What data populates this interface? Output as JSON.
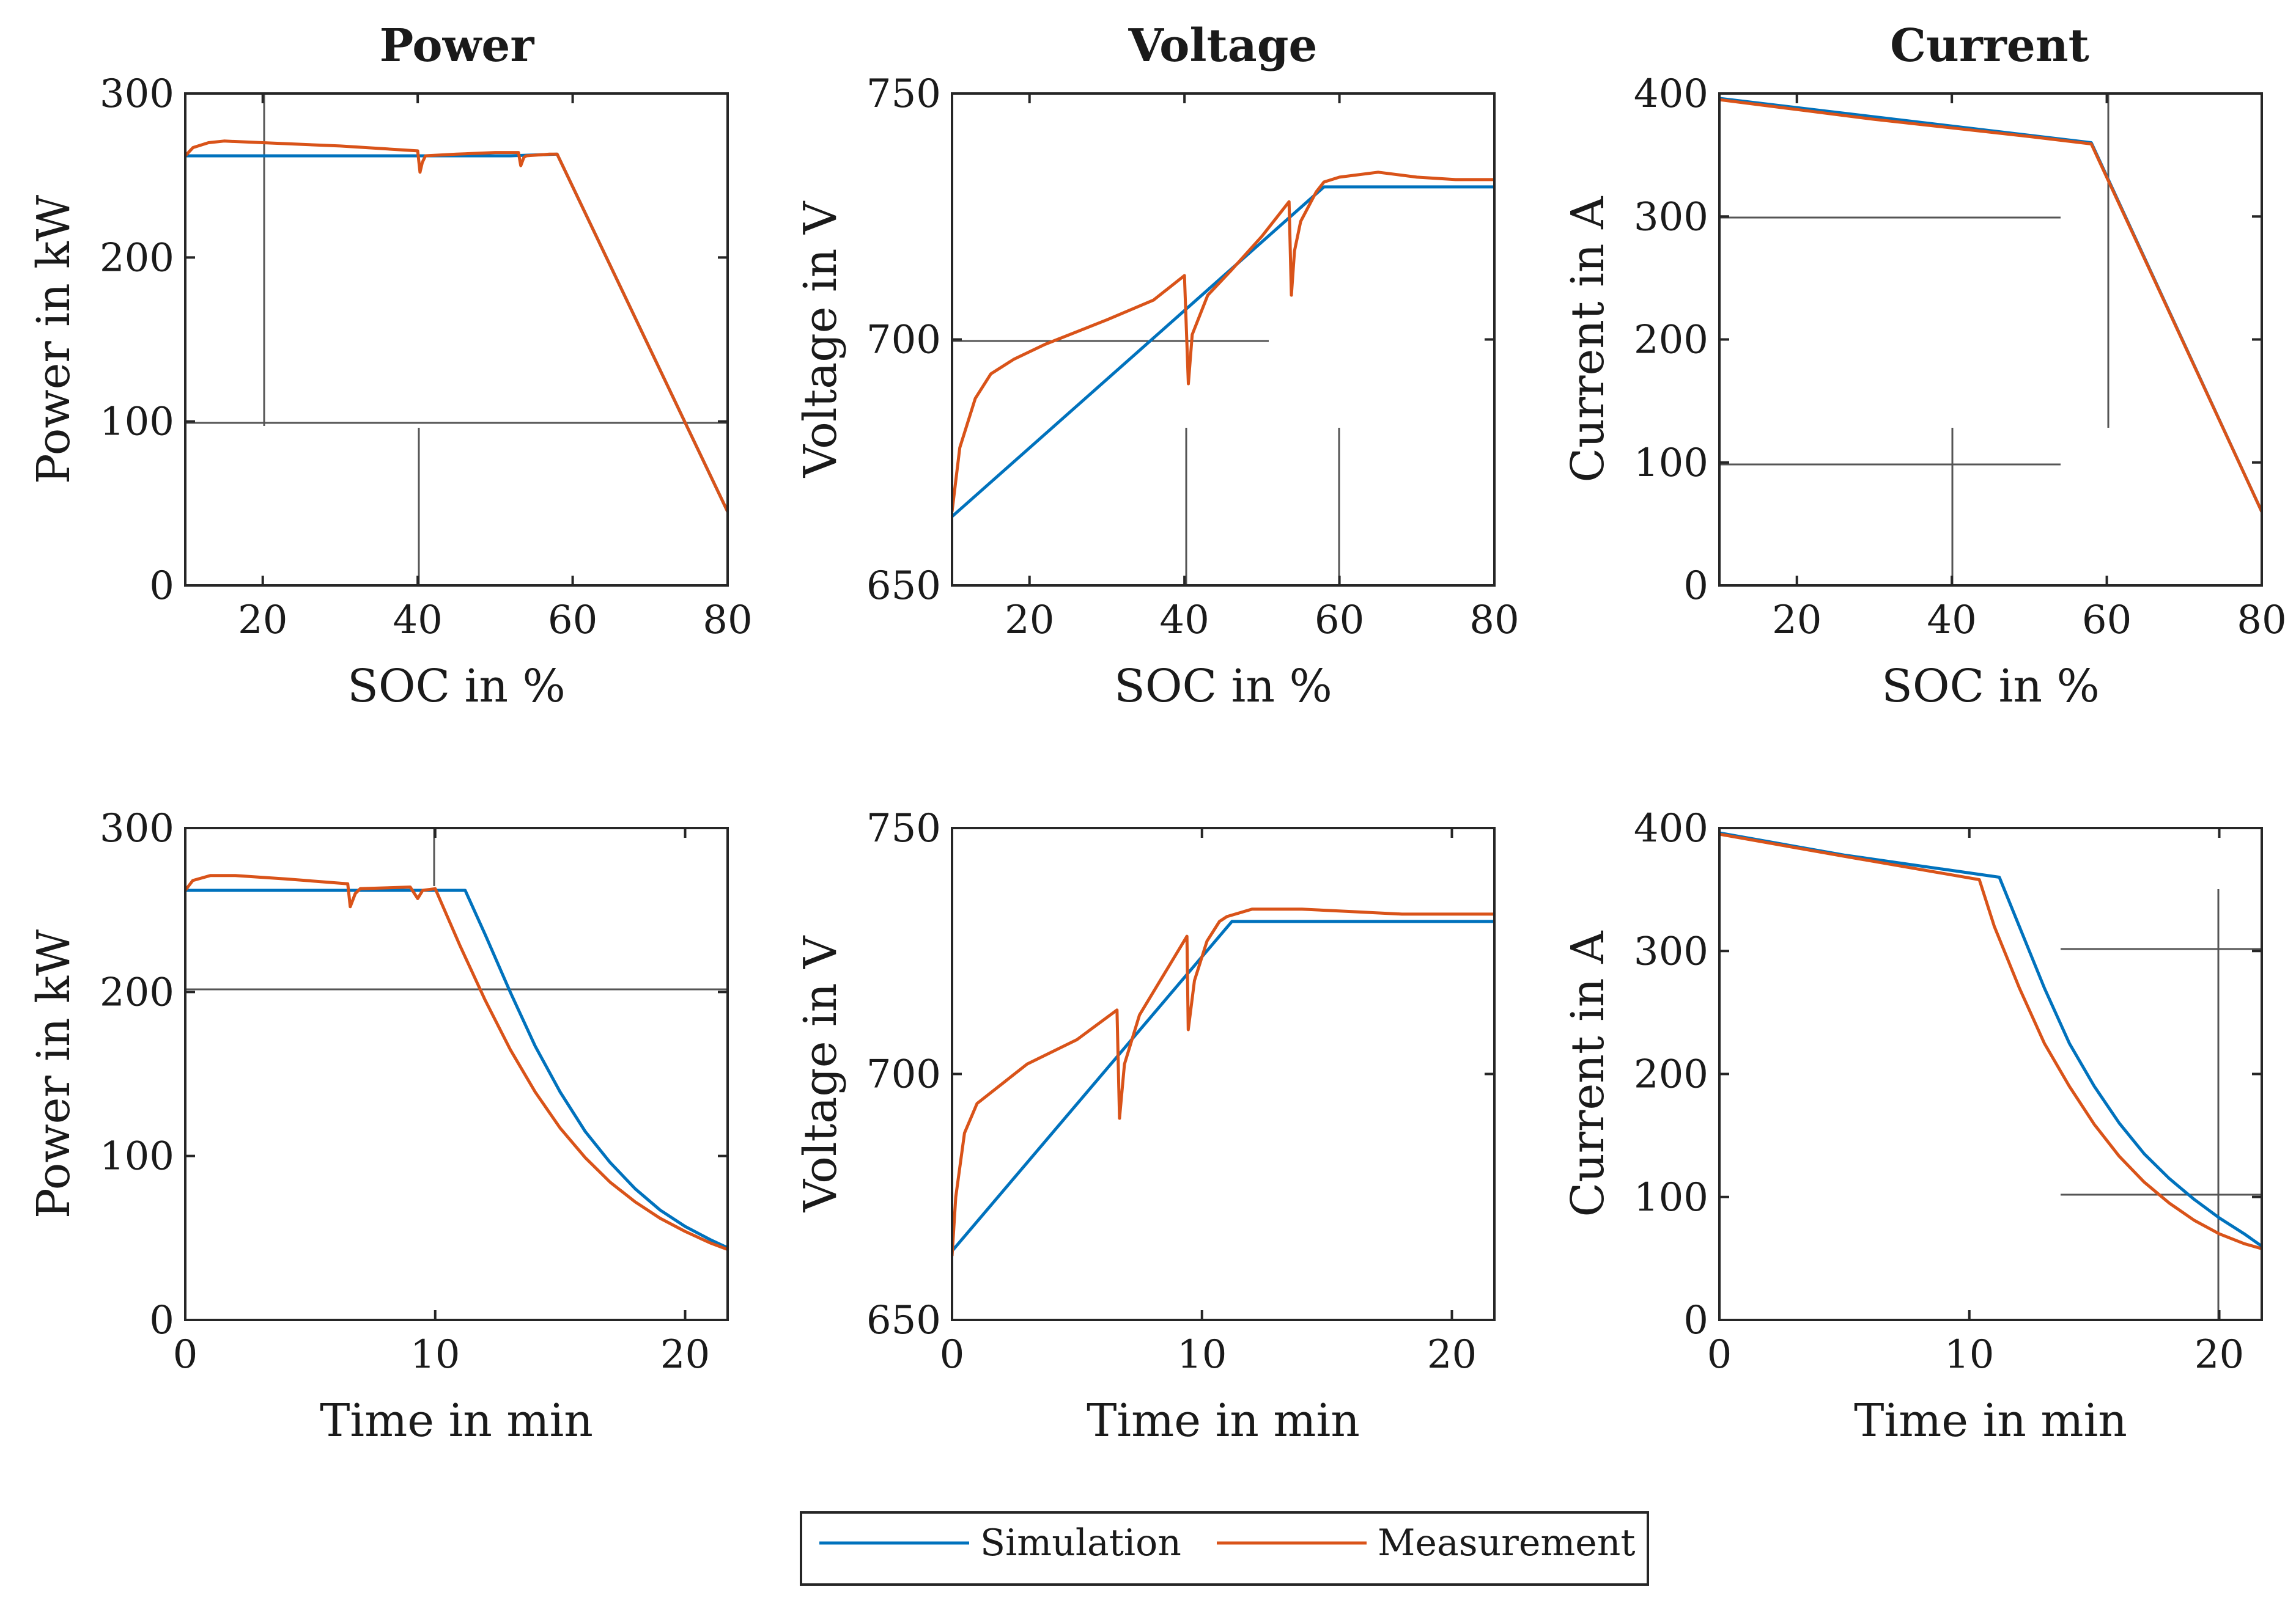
{
  "figure": {
    "column_titles": [
      "Power",
      "Voltage",
      "Current"
    ],
    "legend": {
      "location": "bottom-center",
      "entries": [
        {
          "label": "Simulation",
          "color": "#0072BD"
        },
        {
          "label": "Measurement",
          "color": "#D95319"
        }
      ]
    }
  },
  "chart_data": [
    {
      "type": "line",
      "row": 1,
      "col": 1,
      "title": "Power",
      "xlabel": "SOC in %",
      "ylabel": "Power in kW",
      "xlim": [
        10,
        80
      ],
      "ylim": [
        0,
        300
      ],
      "xticks": [
        20,
        40,
        60,
        80
      ],
      "yticks": [
        0,
        100,
        200,
        300
      ],
      "series": [
        {
          "name": "Simulation",
          "color": "#0072BD",
          "x": [
            10,
            40,
            52,
            58,
            80
          ],
          "y": [
            262,
            262,
            262,
            263,
            45
          ]
        },
        {
          "name": "Measurement",
          "color": "#D95319",
          "x": [
            10,
            11,
            13,
            15,
            20,
            30,
            40,
            40.3,
            40.6,
            41,
            45,
            50,
            53,
            53.3,
            53.7,
            54,
            57,
            58,
            80
          ],
          "y": [
            262,
            267,
            270,
            271,
            270,
            268,
            265,
            252,
            258,
            262,
            263,
            264,
            264,
            256,
            261,
            262,
            263,
            263,
            45
          ]
        }
      ]
    },
    {
      "type": "line",
      "row": 1,
      "col": 2,
      "title": "Voltage",
      "xlabel": "SOC in %",
      "ylabel": "Voltage in V",
      "xlim": [
        10,
        80
      ],
      "ylim": [
        650,
        750
      ],
      "xticks": [
        20,
        40,
        60,
        80
      ],
      "yticks": [
        650,
        700,
        750
      ],
      "series": [
        {
          "name": "Simulation",
          "color": "#0072BD",
          "x": [
            10,
            58,
            80
          ],
          "y": [
            664,
            731,
            731
          ]
        },
        {
          "name": "Measurement",
          "color": "#D95319",
          "x": [
            10,
            11,
            13,
            15,
            18,
            22,
            30,
            36,
            40,
            40.5,
            41,
            43,
            46,
            50,
            53.5,
            53.8,
            54.2,
            55,
            57,
            58,
            60,
            65,
            70,
            75,
            80
          ],
          "y": [
            665,
            678,
            688,
            693,
            696,
            699,
            704,
            708,
            713,
            691,
            701,
            709,
            714,
            721,
            728,
            709,
            718,
            724,
            730,
            732,
            733,
            734,
            733,
            732.5,
            732.5
          ]
        }
      ]
    },
    {
      "type": "line",
      "row": 1,
      "col": 3,
      "title": "Current",
      "xlabel": "SOC in %",
      "ylabel": "Current in A",
      "xlim": [
        10,
        80
      ],
      "ylim": [
        0,
        400
      ],
      "xticks": [
        20,
        40,
        60,
        80
      ],
      "yticks": [
        0,
        100,
        200,
        300,
        400
      ],
      "series": [
        {
          "name": "Simulation",
          "color": "#0072BD",
          "x": [
            10,
            58,
            80
          ],
          "y": [
            396,
            360,
            60
          ]
        },
        {
          "name": "Measurement",
          "color": "#D95319",
          "x": [
            10,
            20,
            30,
            40,
            50,
            58,
            80
          ],
          "y": [
            395,
            387,
            379,
            372,
            365,
            359,
            60
          ]
        }
      ]
    },
    {
      "type": "line",
      "row": 2,
      "col": 1,
      "title": "",
      "xlabel": "Time in min",
      "ylabel": "Power in kW",
      "xlim": [
        0,
        21.7
      ],
      "ylim": [
        0,
        300
      ],
      "xticks": [
        0,
        10,
        20
      ],
      "yticks": [
        0,
        100,
        200,
        300
      ],
      "series": [
        {
          "name": "Simulation",
          "color": "#0072BD",
          "x": [
            0,
            11.2,
            12,
            13,
            14,
            15,
            16,
            17,
            18,
            19,
            20,
            21,
            21.7
          ],
          "y": [
            262,
            262,
            235,
            200,
            167,
            139,
            115,
            96,
            80,
            67,
            57,
            49,
            44
          ]
        },
        {
          "name": "Measurement",
          "color": "#D95319",
          "x": [
            0,
            0.3,
            1,
            2,
            4,
            6.5,
            6.6,
            6.8,
            7,
            9,
            9.3,
            9.5,
            10,
            11,
            12,
            13,
            14,
            15,
            16,
            17,
            18,
            19,
            20,
            21,
            21.7
          ],
          "y": [
            262,
            268,
            271,
            271,
            269,
            266,
            252,
            260,
            263,
            264,
            257,
            262,
            263,
            228,
            195,
            165,
            139,
            117,
            99,
            84,
            72,
            62,
            54,
            47,
            43
          ]
        }
      ]
    },
    {
      "type": "line",
      "row": 2,
      "col": 2,
      "title": "",
      "xlabel": "Time in min",
      "ylabel": "Voltage in V",
      "xlim": [
        0,
        21.7
      ],
      "ylim": [
        650,
        750
      ],
      "xticks": [
        0,
        10,
        20
      ],
      "yticks": [
        650,
        700,
        750
      ],
      "series": [
        {
          "name": "Simulation",
          "color": "#0072BD",
          "x": [
            0,
            11.2,
            21.7
          ],
          "y": [
            664,
            731,
            731
          ]
        },
        {
          "name": "Measurement",
          "color": "#D95319",
          "x": [
            0,
            0.15,
            0.5,
            1,
            2,
            3,
            5,
            6.6,
            6.7,
            6.9,
            7.5,
            9.4,
            9.45,
            9.7,
            10.2,
            10.7,
            11,
            12,
            14,
            16,
            18,
            21.7
          ],
          "y": [
            663,
            675,
            688,
            694,
            698,
            702,
            707,
            713,
            691,
            702,
            712,
            728,
            709,
            719,
            727,
            731,
            732,
            733.5,
            733.5,
            733,
            732.5,
            732.5
          ]
        }
      ]
    },
    {
      "type": "line",
      "row": 2,
      "col": 3,
      "title": "",
      "xlabel": "Time in min",
      "ylabel": "Current in A",
      "xlim": [
        0,
        21.7
      ],
      "ylim": [
        0,
        400
      ],
      "xticks": [
        0,
        10,
        20
      ],
      "yticks": [
        0,
        100,
        200,
        300,
        400
      ],
      "series": [
        {
          "name": "Simulation",
          "color": "#0072BD",
          "x": [
            0,
            5,
            11.2,
            12,
            13,
            14,
            15,
            16,
            17,
            18,
            19,
            20,
            21,
            21.7
          ],
          "y": [
            396,
            378,
            360,
            320,
            270,
            225,
            190,
            160,
            135,
            115,
            98,
            83,
            70,
            60
          ]
        },
        {
          "name": "Measurement",
          "color": "#D95319",
          "x": [
            0,
            5,
            10.4,
            11,
            12,
            13,
            14,
            15,
            16,
            17,
            18,
            19,
            20,
            21,
            21.7
          ],
          "y": [
            395,
            377,
            358,
            320,
            270,
            225,
            190,
            159,
            133,
            112,
            95,
            81,
            70,
            62,
            58
          ]
        }
      ]
    }
  ]
}
